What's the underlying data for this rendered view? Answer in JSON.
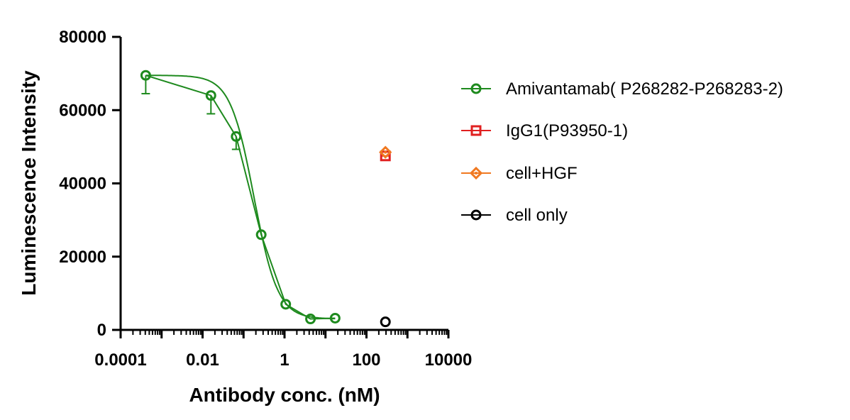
{
  "chart_data": {
    "type": "scatter",
    "xscale": "log",
    "xlabel": "Antibody conc. (nM)",
    "ylabel": "Luminescence Intensity",
    "xlim": [
      0.0001,
      10000
    ],
    "ylim": [
      0,
      80000
    ],
    "x_ticks": [
      0.0001,
      0.01,
      1,
      100,
      10000
    ],
    "x_tick_labels": [
      "0.0001",
      "0.01",
      "1",
      "100",
      "10000"
    ],
    "y_ticks": [
      0,
      20000,
      40000,
      60000,
      80000
    ],
    "y_tick_labels": [
      "0",
      "20000",
      "40000",
      "60000",
      "80000"
    ],
    "grid": false,
    "legend_position": "right",
    "series": [
      {
        "name": "Amivantamab( P268282-P268283-2)",
        "color": "#1e8a1e",
        "marker": "circle",
        "x": [
          0.00041,
          0.016,
          0.066,
          0.27,
          1.07,
          4.3,
          17.2
        ],
        "y": [
          69500,
          64000,
          52800,
          26000,
          7000,
          3000,
          3200
        ],
        "error_low": [
          5000,
          5000,
          3500,
          0,
          0,
          0,
          0
        ],
        "fit": true
      },
      {
        "name": "IgG1(P93950-1)",
        "color": "#e02020",
        "marker": "square",
        "x": [
          290
        ],
        "y": [
          47500
        ]
      },
      {
        "name": "cell+HGF",
        "color": "#f07820",
        "marker": "diamond",
        "x": [
          290
        ],
        "y": [
          48500
        ]
      },
      {
        "name": "cell only",
        "color": "#000000",
        "marker": "circle",
        "x": [
          290
        ],
        "y": [
          2200
        ]
      }
    ]
  }
}
